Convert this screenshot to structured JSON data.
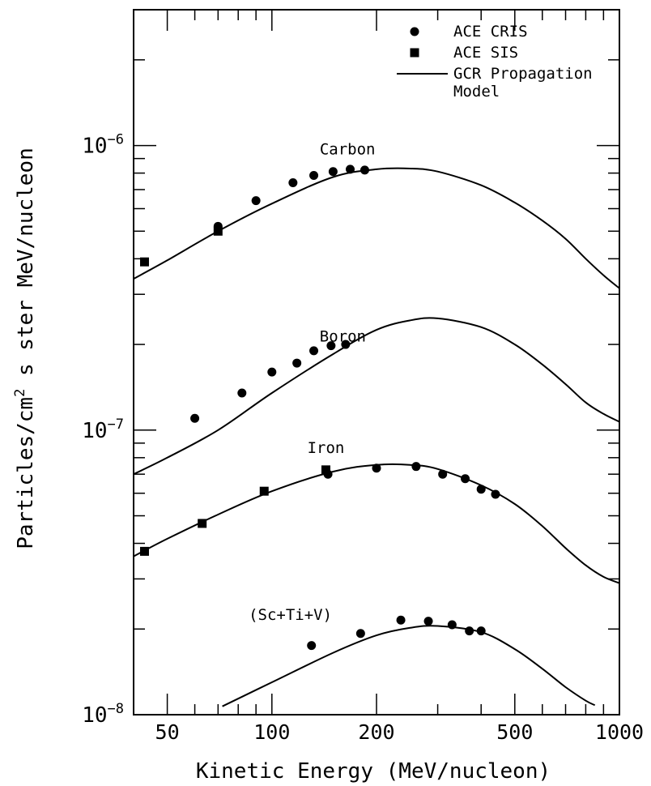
{
  "chart_data": {
    "type": "scatter",
    "title": "",
    "xlabel": "Kinetic Energy (MeV/nucleon)",
    "ylabel_prefix": "Particles/cm",
    "ylabel_sup": "2",
    "ylabel_suffix": " s ster MeV/nucleon",
    "xscale": "log",
    "yscale": "log",
    "xlim": [
      40,
      1000
    ],
    "ylim": [
      1e-08,
      3e-06
    ],
    "xticks": [
      {
        "value": 50,
        "label": "50"
      },
      {
        "value": 100,
        "label": "100"
      },
      {
        "value": 200,
        "label": "200"
      },
      {
        "value": 500,
        "label": "500"
      },
      {
        "value": 1000,
        "label": "1000"
      }
    ],
    "yticks": [
      {
        "value": 1e-08,
        "base": "10",
        "exp": "−8"
      },
      {
        "value": 1e-07,
        "base": "10",
        "exp": "−7"
      },
      {
        "value": 1e-06,
        "base": "10",
        "exp": "−6"
      }
    ],
    "legend": {
      "position": "top-right",
      "entries": [
        {
          "marker": "circle",
          "label": "ACE CRIS"
        },
        {
          "marker": "square",
          "label": "ACE SIS"
        },
        {
          "marker": "line",
          "label": "GCR Propagation",
          "label2": "Model"
        }
      ]
    },
    "series": [
      {
        "name": "Carbon",
        "label_at": [
          165,
          9.3e-07
        ],
        "cris": [
          [
            70,
            5.2e-07
          ],
          [
            90,
            6.4e-07
          ],
          [
            115,
            7.4e-07
          ],
          [
            132,
            7.85e-07
          ],
          [
            150,
            8.1e-07
          ],
          [
            168,
            8.25e-07
          ],
          [
            185,
            8.2e-07
          ]
        ],
        "sis": [
          [
            43,
            3.9e-07
          ],
          [
            70,
            5e-07
          ]
        ],
        "model": [
          [
            40,
            3.4e-07
          ],
          [
            50,
            3.95e-07
          ],
          [
            70,
            5e-07
          ],
          [
            100,
            6.25e-07
          ],
          [
            150,
            7.75e-07
          ],
          [
            200,
            8.25e-07
          ],
          [
            250,
            8.3e-07
          ],
          [
            300,
            8.1e-07
          ],
          [
            400,
            7.25e-07
          ],
          [
            500,
            6.3e-07
          ],
          [
            600,
            5.45e-07
          ],
          [
            700,
            4.7e-07
          ],
          [
            800,
            4e-07
          ],
          [
            900,
            3.5e-07
          ],
          [
            1000,
            3.15e-07
          ]
        ]
      },
      {
        "name": "Boron",
        "label_at": [
          160,
          2.05e-07
        ],
        "cris": [
          [
            60,
            1.1e-07
          ],
          [
            82,
            1.35e-07
          ],
          [
            100,
            1.6e-07
          ],
          [
            118,
            1.72e-07
          ],
          [
            132,
            1.9e-07
          ],
          [
            148,
            1.98e-07
          ],
          [
            163,
            2e-07
          ]
        ],
        "sis": [],
        "model": [
          [
            40,
            7e-08
          ],
          [
            50,
            8e-08
          ],
          [
            70,
            1e-07
          ],
          [
            100,
            1.35e-07
          ],
          [
            150,
            1.85e-07
          ],
          [
            200,
            2.25e-07
          ],
          [
            250,
            2.43e-07
          ],
          [
            300,
            2.47e-07
          ],
          [
            400,
            2.3e-07
          ],
          [
            500,
            2e-07
          ],
          [
            600,
            1.7e-07
          ],
          [
            700,
            1.45e-07
          ],
          [
            800,
            1.25e-07
          ],
          [
            900,
            1.14e-07
          ],
          [
            1000,
            1.07e-07
          ]
        ]
      },
      {
        "name": "Iron",
        "label_at": [
          143,
          8.3e-08
        ],
        "cris": [
          [
            145,
            7e-08
          ],
          [
            200,
            7.35e-08
          ],
          [
            260,
            7.45e-08
          ],
          [
            310,
            7e-08
          ],
          [
            360,
            6.75e-08
          ],
          [
            400,
            6.2e-08
          ],
          [
            440,
            5.95e-08
          ]
        ],
        "sis": [
          [
            43,
            3.75e-08
          ],
          [
            63,
            4.7e-08
          ],
          [
            95,
            6.1e-08
          ],
          [
            143,
            7.25e-08
          ]
        ],
        "model": [
          [
            40,
            3.6e-08
          ],
          [
            50,
            4.15e-08
          ],
          [
            70,
            5.05e-08
          ],
          [
            100,
            6.1e-08
          ],
          [
            150,
            7.15e-08
          ],
          [
            200,
            7.55e-08
          ],
          [
            250,
            7.55e-08
          ],
          [
            300,
            7.3e-08
          ],
          [
            400,
            6.4e-08
          ],
          [
            500,
            5.5e-08
          ],
          [
            600,
            4.6e-08
          ],
          [
            700,
            3.85e-08
          ],
          [
            800,
            3.35e-08
          ],
          [
            900,
            3.05e-08
          ],
          [
            1000,
            2.9e-08
          ]
        ]
      },
      {
        "name": "(Sc+Ti+V)",
        "label_at": [
          113,
          2.15e-08
        ],
        "cris": [
          [
            130,
            1.75e-08
          ],
          [
            180,
            1.93e-08
          ],
          [
            235,
            2.15e-08
          ],
          [
            282,
            2.13e-08
          ],
          [
            330,
            2.07e-08
          ],
          [
            370,
            1.97e-08
          ],
          [
            400,
            1.97e-08
          ]
        ],
        "sis": [],
        "model": [
          [
            72,
            1.07e-08
          ],
          [
            100,
            1.3e-08
          ],
          [
            150,
            1.65e-08
          ],
          [
            200,
            1.9e-08
          ],
          [
            250,
            2.02e-08
          ],
          [
            300,
            2.05e-08
          ],
          [
            400,
            1.95e-08
          ],
          [
            500,
            1.7e-08
          ],
          [
            600,
            1.45e-08
          ],
          [
            700,
            1.25e-08
          ],
          [
            800,
            1.12e-08
          ],
          [
            850,
            1.08e-08
          ]
        ]
      }
    ]
  }
}
